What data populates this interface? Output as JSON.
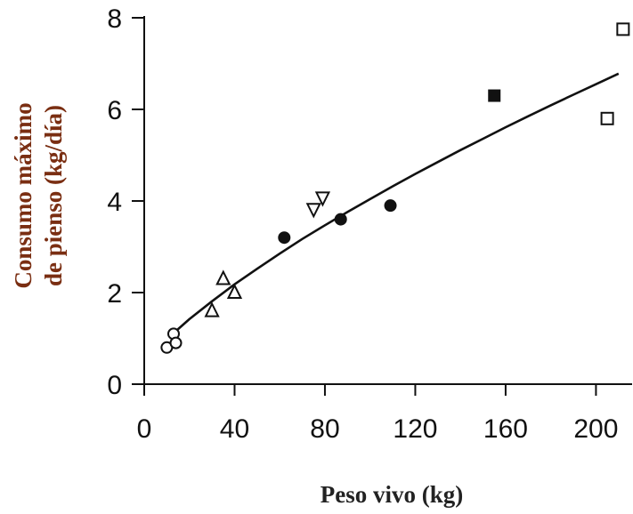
{
  "chart_data": {
    "type": "scatter",
    "title": "",
    "xlabel": "Peso vivo (kg)",
    "ylabel_lines": [
      "Consumo máximo",
      "de pienso (kg/día)"
    ],
    "xlim": [
      0,
      216
    ],
    "ylim": [
      0,
      8
    ],
    "x_ticks": [
      0,
      40,
      80,
      120,
      160,
      200
    ],
    "x_tick_labels": [
      "0",
      "40",
      "80",
      "120",
      "160",
      "200"
    ],
    "y_ticks": [
      0,
      2,
      4,
      6,
      8
    ],
    "y_tick_labels": [
      "0",
      "2",
      "4",
      "6",
      "8"
    ],
    "grid": false,
    "legend": "none",
    "series": [
      {
        "marker": "open-circle",
        "points": [
          [
            10,
            0.8
          ],
          [
            13,
            1.1
          ],
          [
            14,
            0.9
          ]
        ]
      },
      {
        "marker": "open-triangle-up",
        "points": [
          [
            30,
            1.6
          ],
          [
            35,
            2.3
          ],
          [
            40,
            2.0
          ]
        ]
      },
      {
        "marker": "filled-circle",
        "points": [
          [
            62,
            3.2
          ],
          [
            87,
            3.6
          ],
          [
            109,
            3.9
          ]
        ]
      },
      {
        "marker": "open-triangle-down",
        "points": [
          [
            75,
            3.8
          ],
          [
            79,
            4.05
          ]
        ]
      },
      {
        "marker": "filled-square",
        "points": [
          [
            155,
            6.3
          ]
        ]
      },
      {
        "marker": "open-square",
        "points": [
          [
            205,
            5.8
          ],
          [
            212,
            7.75
          ]
        ]
      }
    ],
    "fit_curve": {
      "x": [
        12,
        20,
        30,
        40,
        50,
        60,
        70,
        80,
        90,
        100,
        110,
        120,
        130,
        140,
        150,
        160,
        170,
        180,
        190,
        200,
        210
      ],
      "y": [
        1.07,
        1.42,
        1.81,
        2.18,
        2.52,
        2.85,
        3.17,
        3.47,
        3.76,
        4.04,
        4.32,
        4.59,
        4.85,
        5.11,
        5.36,
        5.61,
        5.85,
        6.09,
        6.32,
        6.55,
        6.78
      ]
    },
    "colors": {
      "axis": "#111111",
      "ylabel": "#7a2e12",
      "xlabel": "#222222",
      "marks": "#111111"
    }
  }
}
